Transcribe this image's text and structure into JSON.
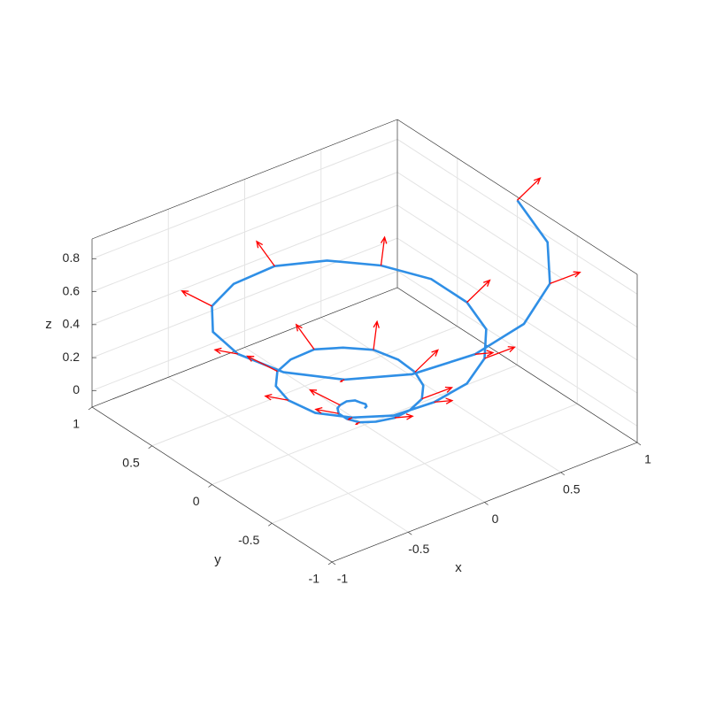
{
  "chart_data": {
    "type": "quiver3",
    "xlabel": "x",
    "ylabel": "y",
    "zlabel": "z",
    "xlim": [
      -1,
      1
    ],
    "ylim": [
      -1,
      1
    ],
    "zlim": [
      -0.1,
      0.92
    ],
    "xticks": [
      -1,
      -0.5,
      0,
      0.5,
      1
    ],
    "yticks": [
      -1,
      -0.5,
      0,
      0.5,
      1
    ],
    "zticks": [
      0,
      0.2,
      0.4,
      0.6,
      0.8
    ],
    "grid": true,
    "curve": {
      "color": "#2f8fe6",
      "x": [
        0,
        0.02,
        0.03,
        0.02,
        0,
        -0.04,
        -0.09,
        -0.13,
        -0.17,
        -0.17,
        -0.15,
        -0.09,
        0,
        0.1,
        0.21,
        0.29,
        0.33,
        0.33,
        0.27,
        0.15,
        0,
        -0.17,
        -0.32,
        -0.44,
        -0.5,
        -0.48,
        -0.38,
        -0.22,
        0,
        0.23,
        0.44,
        0.6,
        0.67,
        0.64,
        0.5,
        0.28,
        0,
        -0.3,
        -0.56,
        -0.75,
        -0.83,
        -0.79,
        -0.62,
        -0.34,
        0,
        0.36,
        0.68,
        0.9,
        1
      ],
      "y": [
        0,
        0.01,
        0.03,
        0.06,
        0.08,
        0.1,
        0.09,
        0.06,
        0,
        -0.07,
        -0.15,
        -0.21,
        -0.25,
        -0.25,
        -0.21,
        -0.12,
        0,
        0.14,
        0.27,
        0.37,
        0.42,
        0.4,
        0.32,
        0.18,
        0,
        -0.2,
        -0.38,
        -0.52,
        -0.58,
        -0.56,
        -0.44,
        -0.25,
        0,
        0.26,
        0.5,
        0.67,
        0.75,
        0.71,
        0.56,
        0.31,
        0,
        -0.33,
        -0.62,
        -0.83,
        -0.92,
        -0.87,
        -0.68,
        -0.38,
        0
      ],
      "z": [
        0,
        0,
        0,
        0,
        0.01,
        0.01,
        0.01,
        0.02,
        0.03,
        0.03,
        0.04,
        0.05,
        0.06,
        0.07,
        0.08,
        0.09,
        0.1,
        0.11,
        0.13,
        0.14,
        0.16,
        0.17,
        0.19,
        0.21,
        0.23,
        0.24,
        0.26,
        0.28,
        0.31,
        0.33,
        0.35,
        0.38,
        0.4,
        0.43,
        0.45,
        0.48,
        0.51,
        0.53,
        0.56,
        0.59,
        0.63,
        0.66,
        0.69,
        0.72,
        0.76,
        0.79,
        0.83,
        0.86,
        0.9
      ]
    },
    "arrows": {
      "color": "#ff0000",
      "x": [
        -0.09,
        -0.17,
        -0.15,
        0,
        0.21,
        0.33,
        0.27,
        0,
        -0.32,
        -0.5,
        -0.38,
        0,
        0.44,
        0.67,
        0.5,
        0,
        -0.56,
        -0.83,
        -0.62,
        0,
        0.68,
        1
      ],
      "y": [
        0.09,
        0,
        -0.15,
        -0.25,
        -0.21,
        0,
        0.27,
        0.42,
        0.32,
        0,
        -0.38,
        -0.58,
        -0.44,
        0,
        0.5,
        0.75,
        0.56,
        0,
        -0.62,
        -0.92,
        -0.68,
        0
      ],
      "z": [
        0.01,
        0.03,
        0.04,
        0.06,
        0.08,
        0.1,
        0.13,
        0.16,
        0.19,
        0.23,
        0.26,
        0.31,
        0.35,
        0.4,
        0.45,
        0.51,
        0.56,
        0.63,
        0.69,
        0.76,
        0.83,
        0.9
      ],
      "u": [
        -0.11,
        -0.15,
        -0.11,
        0,
        0.11,
        0.15,
        0.11,
        0,
        -0.11,
        -0.15,
        -0.11,
        0,
        0.11,
        0.15,
        0.11,
        0,
        -0.11,
        -0.15,
        -0.11,
        0,
        0.11,
        0.15
      ],
      "v": [
        0.11,
        0,
        -0.11,
        -0.15,
        -0.11,
        0,
        0.11,
        0.15,
        0.11,
        0,
        -0.11,
        -0.15,
        -0.11,
        0,
        0.11,
        0.15,
        0.11,
        0,
        -0.11,
        -0.15,
        -0.11,
        0
      ],
      "w": [
        0.08,
        0.08,
        0.08,
        0.08,
        0.08,
        0.08,
        0.08,
        0.08,
        0.08,
        0.08,
        0.08,
        0.08,
        0.08,
        0.08,
        0.08,
        0.08,
        0.08,
        0.08,
        0.08,
        0.08,
        0.08,
        0.08
      ]
    }
  }
}
